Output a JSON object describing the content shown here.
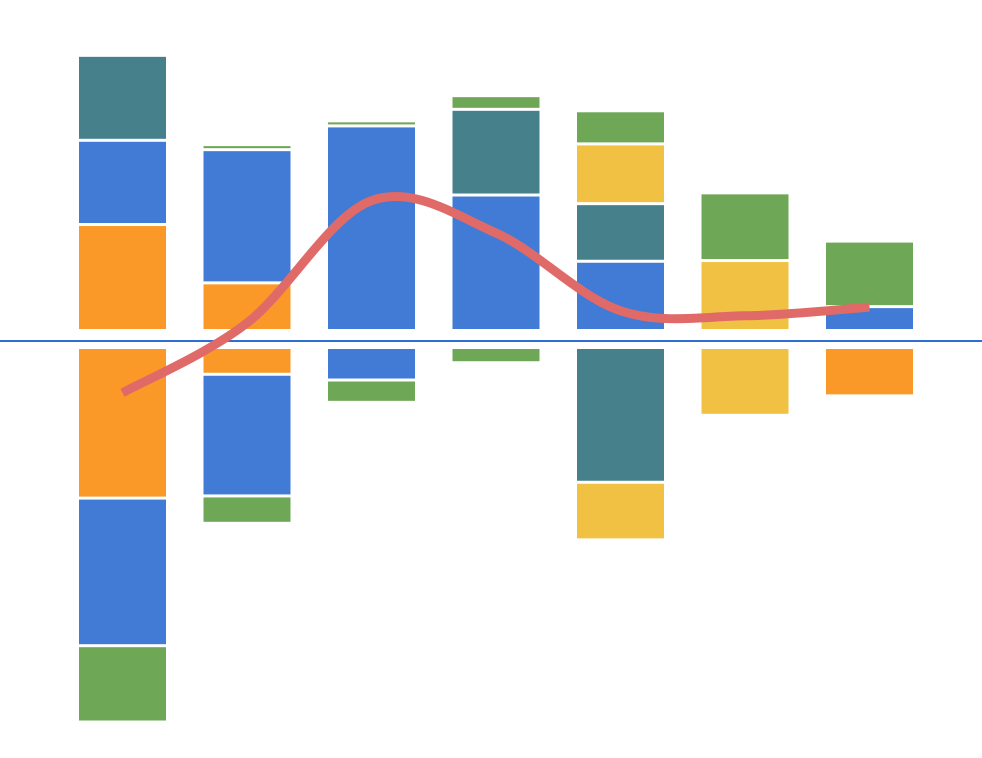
{
  "chart_data": {
    "type": "bar",
    "stacked": true,
    "diverging": true,
    "title": "",
    "xlabel": "",
    "ylabel": "",
    "ylim": [
      -5.25,
      3.88
    ],
    "categories": [
      "",
      "",
      "",
      "",
      "",
      "",
      ""
    ],
    "colors": {
      "orange": "#FA9828",
      "blue": "#417BD6",
      "teal": "#46808A",
      "yellow": "#F1C143",
      "green": "#6EA755",
      "line": "#E06A68",
      "baseline": "#2E6FD6"
    },
    "series": [
      {
        "color_key": "orange",
        "pos": [
          1.43,
          0.62,
          0,
          0,
          0,
          0,
          0
        ],
        "neg": [
          -2.05,
          -0.33,
          0,
          0,
          0,
          0,
          -0.63
        ]
      },
      {
        "color_key": "blue",
        "pos": [
          1.17,
          1.85,
          2.8,
          1.84,
          0.92,
          0,
          0.29
        ],
        "neg": [
          -2.05,
          -1.69,
          -0.41,
          0,
          0,
          0,
          0
        ]
      },
      {
        "color_key": "teal",
        "pos": [
          1.18,
          0,
          0,
          1.19,
          0.8,
          0,
          0
        ],
        "neg": [
          0,
          0,
          0,
          0,
          -1.83,
          0,
          0
        ]
      },
      {
        "color_key": "yellow",
        "pos": [
          0,
          0,
          0,
          0,
          0.83,
          0.93,
          0
        ],
        "neg": [
          0,
          0,
          0,
          0,
          -0.8,
          -0.9,
          0
        ]
      },
      {
        "color_key": "green",
        "pos": [
          0,
          0.07,
          0.07,
          0.19,
          0.46,
          0.94,
          0.91
        ],
        "neg": [
          -1.06,
          -0.38,
          -0.31,
          -0.17,
          0,
          0,
          0
        ]
      }
    ],
    "line": {
      "color_key": "line",
      "values": [
        -0.72,
        0.25,
        1.95,
        1.5,
        0.42,
        0.35,
        0.47
      ]
    },
    "grid": false,
    "legend": "none"
  }
}
